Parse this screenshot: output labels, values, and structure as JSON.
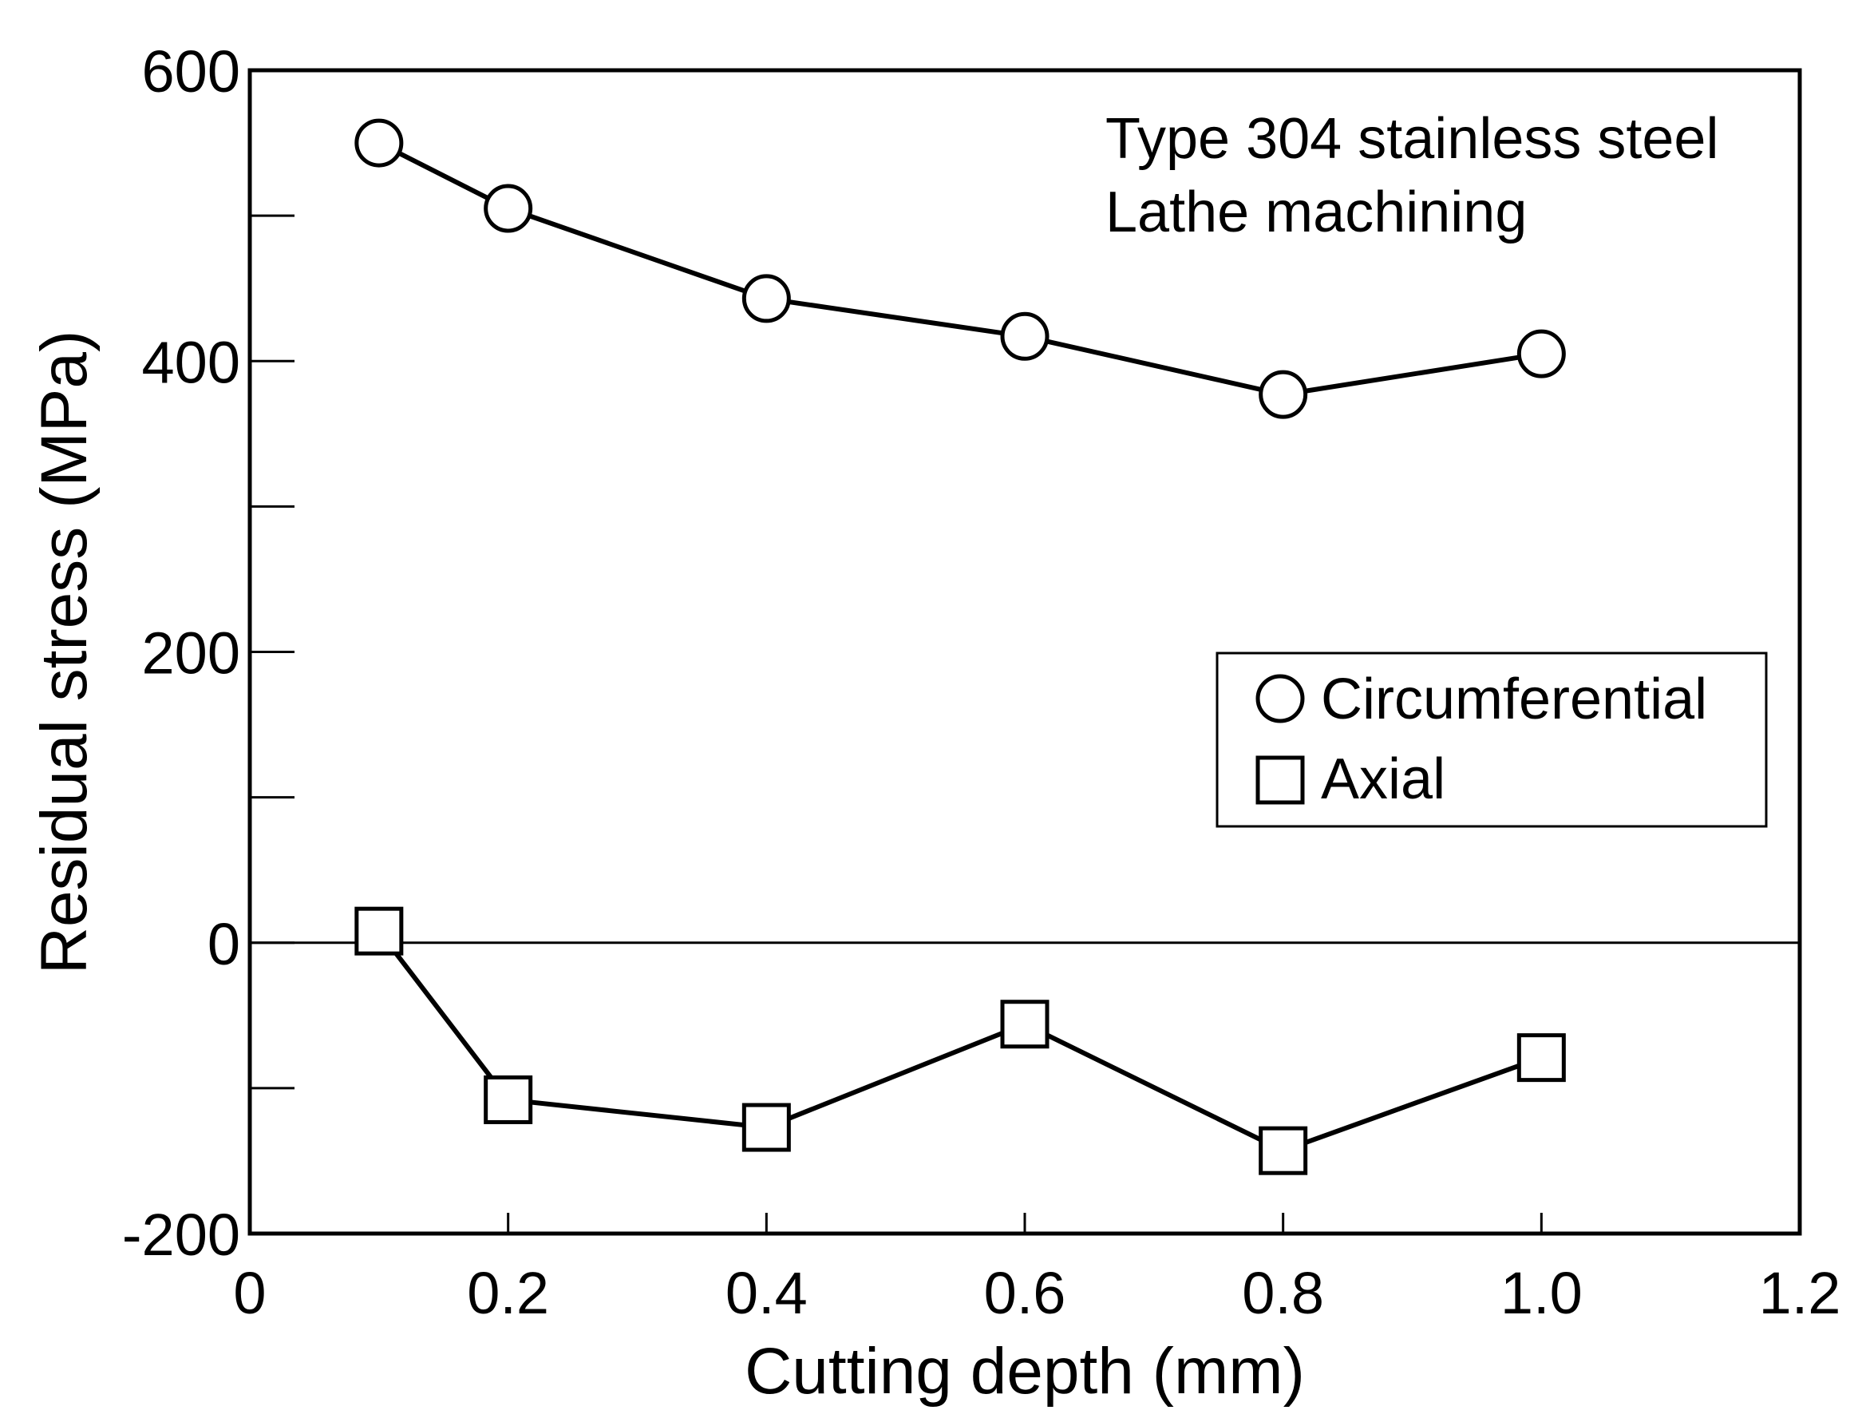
{
  "chart_data": {
    "type": "line",
    "title": "",
    "xlabel": "Cutting depth (mm)",
    "ylabel": "Residual stress (MPa)",
    "xlim": [
      0,
      1.2
    ],
    "ylim": [
      -200,
      600
    ],
    "x_ticks": [
      0,
      0.2,
      0.4,
      0.6,
      0.8,
      1.0,
      1.2
    ],
    "x_tick_labels": [
      "0",
      "0.2",
      "0.4",
      "0.6",
      "0.8",
      "1.0",
      "1.2"
    ],
    "y_ticks": [
      -200,
      0,
      200,
      400,
      600
    ],
    "y_tick_labels": [
      "-200",
      "0",
      "200",
      "400",
      "600"
    ],
    "y_minor_ticks": [
      -100,
      100,
      300,
      500
    ],
    "zero_line": true,
    "annotations": [
      "Type 304 stainless steel",
      "Lathe machining"
    ],
    "legend_position": "right-middle",
    "series": [
      {
        "name": "Circumferential",
        "marker": "circle",
        "x": [
          0.1,
          0.2,
          0.4,
          0.6,
          0.8,
          1.0
        ],
        "values": [
          550,
          505,
          443,
          417,
          377,
          405
        ]
      },
      {
        "name": "Axial",
        "marker": "square",
        "x": [
          0.1,
          0.2,
          0.4,
          0.6,
          0.8,
          1.0
        ],
        "values": [
          8,
          -108,
          -127,
          -56,
          -143,
          -79
        ]
      }
    ],
    "colors": {
      "line": "#000000",
      "marker_fill": "#ffffff",
      "background": "#ffffff"
    }
  }
}
